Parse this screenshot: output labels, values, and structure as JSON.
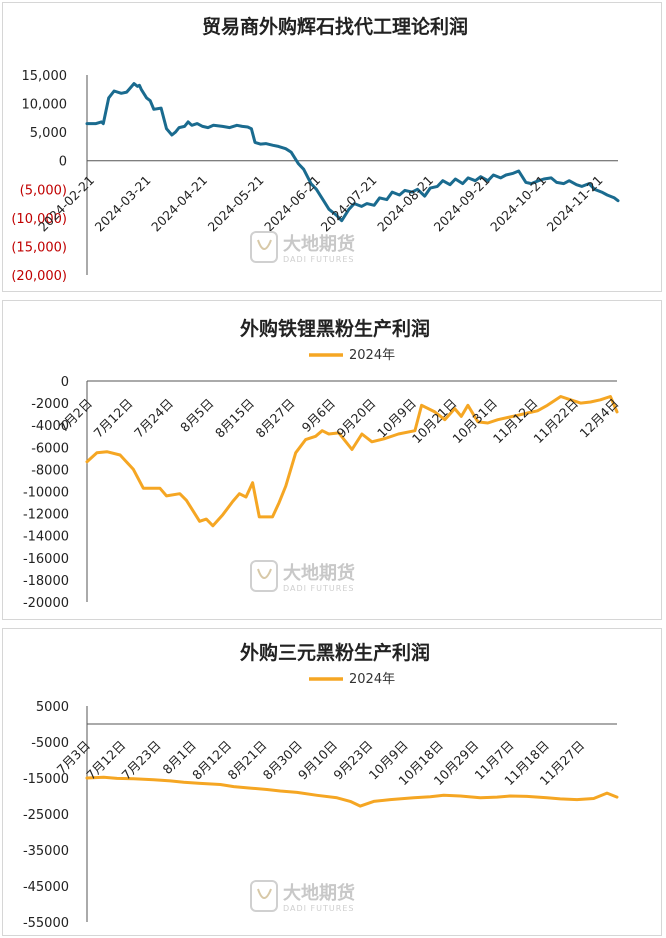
{
  "watermark": {
    "name": "大地期货",
    "sub": "DADI FUTURES"
  },
  "chart_data": [
    {
      "type": "line",
      "title": "贸易商外购辉石找代工理论利润",
      "ylim": [
        -20000,
        15000
      ],
      "yticks": [
        "15,000",
        "10,000",
        "5,000",
        "0",
        "(5,000)",
        "(10,000)",
        "(15,000)",
        "(20,000)"
      ],
      "xticks": [
        "2024-02-21",
        "2024-03-21",
        "2024-04-21",
        "2024-05-21",
        "2024-06-21",
        "2024-07-21",
        "2024-08-21",
        "2024-09-21",
        "2024-10-21",
        "2024-11-21"
      ],
      "legend": "none",
      "color": "#1a6b8f",
      "series": [
        {
          "x": [
            "2024-02-21",
            "2024-02-26",
            "2024-02-29",
            "2024-03-01",
            "2024-03-04",
            "2024-03-07",
            "2024-03-11",
            "2024-03-14",
            "2024-03-18",
            "2024-03-20",
            "2024-03-21",
            "2024-03-22",
            "2024-03-25",
            "2024-03-27",
            "2024-03-29",
            "2024-04-02",
            "2024-04-05",
            "2024-04-08",
            "2024-04-10",
            "2024-04-12",
            "2024-04-15",
            "2024-04-17",
            "2024-04-19",
            "2024-04-22",
            "2024-04-25",
            "2024-04-28",
            "2024-05-01",
            "2024-05-06",
            "2024-05-10",
            "2024-05-14",
            "2024-05-17",
            "2024-05-20",
            "2024-05-22",
            "2024-05-24",
            "2024-05-27",
            "2024-05-30",
            "2024-06-03",
            "2024-06-06",
            "2024-06-10",
            "2024-06-13",
            "2024-06-17",
            "2024-06-20",
            "2024-06-24",
            "2024-06-27",
            "2024-07-01",
            "2024-07-04",
            "2024-07-08",
            "2024-07-11",
            "2024-07-15",
            "2024-07-18",
            "2024-07-22",
            "2024-07-25",
            "2024-07-29",
            "2024-08-01",
            "2024-08-05",
            "2024-08-08",
            "2024-08-12",
            "2024-08-15",
            "2024-08-19",
            "2024-08-22",
            "2024-08-26",
            "2024-08-29",
            "2024-09-02",
            "2024-09-05",
            "2024-09-09",
            "2024-09-12",
            "2024-09-16",
            "2024-09-19",
            "2024-09-23",
            "2024-09-26",
            "2024-09-30",
            "2024-10-03",
            "2024-10-07",
            "2024-10-10",
            "2024-10-14",
            "2024-10-17",
            "2024-10-21",
            "2024-10-24",
            "2024-10-28",
            "2024-10-31",
            "2024-11-04",
            "2024-11-07",
            "2024-11-11",
            "2024-11-14",
            "2024-11-18",
            "2024-11-21",
            "2024-11-25",
            "2024-11-28",
            "2024-12-02",
            "2024-12-05",
            "2024-12-09",
            "2024-12-11"
          ],
          "values": [
            6500,
            6500,
            6800,
            6500,
            11000,
            12200,
            11800,
            12000,
            13500,
            13000,
            13200,
            12500,
            11000,
            10500,
            9000,
            9200,
            5600,
            4500,
            5000,
            5800,
            6000,
            6800,
            6200,
            6500,
            6000,
            5800,
            6200,
            6000,
            5800,
            6200,
            6000,
            5900,
            5600,
            3200,
            2900,
            3000,
            2700,
            2500,
            2100,
            1500,
            -500,
            -1500,
            -4000,
            -5000,
            -7000,
            -8500,
            -9500,
            -10500,
            -8500,
            -7500,
            -8000,
            -7500,
            -7800,
            -6500,
            -6800,
            -5500,
            -6000,
            -5200,
            -5500,
            -5000,
            -6200,
            -4800,
            -4500,
            -3500,
            -4200,
            -3200,
            -4000,
            -3000,
            -3500,
            -2800,
            -3500,
            -2500,
            -3000,
            -2500,
            -2200,
            -1800,
            -3800,
            -4000,
            -3500,
            -3200,
            -3000,
            -3800,
            -4000,
            -3500,
            -4200,
            -4500,
            -4000,
            -5000,
            -5500,
            -6000,
            -6500,
            -7000
          ]
        }
      ]
    },
    {
      "type": "line",
      "title": "外购铁锂黑粉生产利润",
      "ylim": [
        -20000,
        0
      ],
      "yticks": [
        "0",
        "-2000",
        "-4000",
        "-6000",
        "-8000",
        "-10000",
        "-12000",
        "-14000",
        "-16000",
        "-18000",
        "-20000"
      ],
      "xticks": [
        "7月2日",
        "7月12日",
        "7月24日",
        "8月5日",
        "8月15日",
        "8月27日",
        "9月6日",
        "9月20日",
        "10月9日",
        "10月21日",
        "10月31日",
        "11月12日",
        "11月22日",
        "12月4日"
      ],
      "legend": "top",
      "color": "#f5a623",
      "series": [
        {
          "name": "2024年",
          "x": [
            "07-02",
            "07-05",
            "07-08",
            "07-12",
            "07-16",
            "07-19",
            "07-24",
            "07-26",
            "07-30",
            "08-01",
            "08-05",
            "08-07",
            "08-09",
            "08-12",
            "08-15",
            "08-17",
            "08-19",
            "08-21",
            "08-23",
            "08-27",
            "08-29",
            "08-31",
            "09-03",
            "09-06",
            "09-09",
            "09-11",
            "09-13",
            "09-16",
            "09-20",
            "09-23",
            "09-26",
            "09-30",
            "10-04",
            "10-09",
            "10-11",
            "10-15",
            "10-18",
            "10-21",
            "10-23",
            "10-25",
            "10-28",
            "10-31",
            "11-03",
            "11-06",
            "11-09",
            "11-12",
            "11-15",
            "11-18",
            "11-22",
            "11-25",
            "11-28",
            "12-01",
            "12-04",
            "12-07",
            "12-09"
          ],
          "values": [
            -7300,
            -6500,
            -6400,
            -6700,
            -8000,
            -9700,
            -9700,
            -10400,
            -10200,
            -10800,
            -12700,
            -12500,
            -13100,
            -12100,
            -10900,
            -10200,
            -10500,
            -9200,
            -12300,
            -12300,
            -11000,
            -9500,
            -6500,
            -5300,
            -5000,
            -4500,
            -4800,
            -4700,
            -6200,
            -4800,
            -5500,
            -5200,
            -4800,
            -4500,
            -2200,
            -2800,
            -3500,
            -2500,
            -3200,
            -2200,
            -3700,
            -3800,
            -3500,
            -3300,
            -3100,
            -2900,
            -2700,
            -2200,
            -1400,
            -1700,
            -2000,
            -1900,
            -1700,
            -1400,
            -2800
          ]
        }
      ]
    },
    {
      "type": "line",
      "title": "外购三元黑粉生产利润",
      "ylim": [
        -55000,
        5000
      ],
      "yticks": [
        "5000",
        "-5000",
        "-15000",
        "-25000",
        "-35000",
        "-45000",
        "-55000"
      ],
      "xticks": [
        "7月3日",
        "7月12日",
        "7月23日",
        "8月1日",
        "8月12日",
        "8月21日",
        "8月30日",
        "9月10日",
        "9月23日",
        "10月9日",
        "10月18日",
        "10月29日",
        "11月7日",
        "11月18日",
        "11月27日"
      ],
      "legend": "top",
      "color": "#f5a623",
      "series": [
        {
          "name": "2024年",
          "x": [
            "07-03",
            "07-08",
            "07-12",
            "07-17",
            "07-23",
            "07-28",
            "08-01",
            "08-06",
            "08-12",
            "08-16",
            "08-21",
            "08-26",
            "08-30",
            "09-04",
            "09-10",
            "09-16",
            "09-20",
            "09-23",
            "09-27",
            "10-02",
            "10-09",
            "10-14",
            "10-18",
            "10-23",
            "10-29",
            "11-03",
            "11-07",
            "11-12",
            "11-18",
            "11-22",
            "11-27",
            "12-02",
            "12-06",
            "12-09"
          ],
          "values": [
            -15000,
            -14800,
            -15100,
            -15200,
            -15500,
            -15800,
            -16200,
            -16500,
            -16800,
            -17400,
            -17800,
            -18200,
            -18600,
            -19000,
            -19800,
            -20500,
            -21500,
            -22800,
            -21500,
            -21000,
            -20500,
            -20200,
            -19800,
            -20000,
            -20500,
            -20300,
            -20000,
            -20100,
            -20500,
            -20800,
            -21000,
            -20700,
            -19200,
            -20300
          ]
        }
      ]
    }
  ]
}
